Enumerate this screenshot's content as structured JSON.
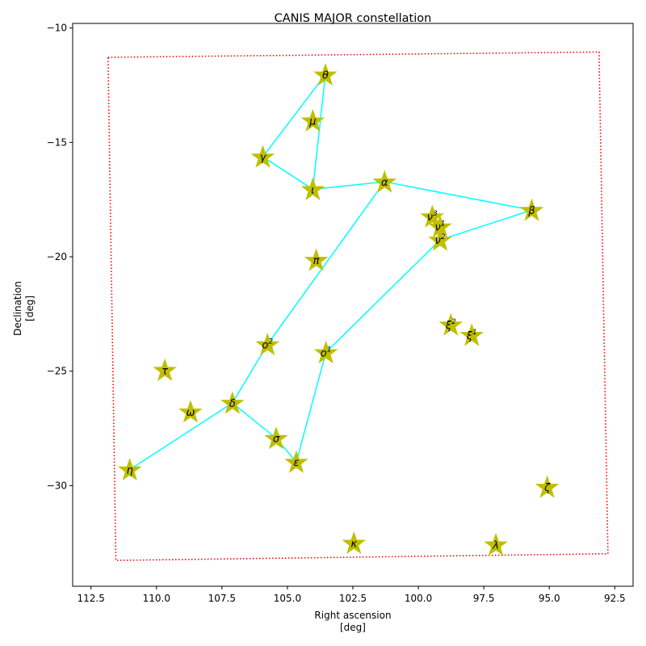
{
  "chart_data": {
    "type": "scatter",
    "title": "CANIS MAJOR constellation",
    "xlabel": [
      "Right ascension",
      "[deg]"
    ],
    "ylabel": [
      "Declination",
      "[deg]"
    ],
    "xlim": [
      113.2,
      91.8
    ],
    "ylim": [
      -34.4,
      -9.8
    ],
    "x_ticks": [
      112.5,
      110.0,
      107.5,
      105.0,
      102.5,
      100.0,
      97.5,
      95.0,
      92.5
    ],
    "x_tick_labels": [
      "112.5",
      "110.0",
      "107.5",
      "105.0",
      "102.5",
      "100.0",
      "97.5",
      "95.0",
      "92.5"
    ],
    "y_ticks": [
      -10,
      -15,
      -20,
      -25,
      -30
    ],
    "y_tick_labels": [
      "−10",
      "−15",
      "−20",
      "−25",
      "−30"
    ],
    "grid": false,
    "colors": {
      "star": "#bfbf00",
      "line": "#00ffff",
      "boundary": "#ff0000",
      "axes": "#000000"
    },
    "stars": [
      {
        "id": "theta",
        "label": "θ",
        "sup": "",
        "x": 103.55,
        "y": -12.04
      },
      {
        "id": "mu",
        "label": "μ",
        "sup": "",
        "x": 104.03,
        "y": -14.05
      },
      {
        "id": "gamma",
        "label": "γ",
        "sup": "",
        "x": 105.94,
        "y": -15.63
      },
      {
        "id": "iota",
        "label": "ι",
        "sup": "",
        "x": 104.03,
        "y": -17.05
      },
      {
        "id": "alpha",
        "label": "α",
        "sup": "",
        "x": 101.29,
        "y": -16.72
      },
      {
        "id": "beta",
        "label": "β",
        "sup": "",
        "x": 95.67,
        "y": -17.96
      },
      {
        "id": "nu3",
        "label": "ν",
        "sup": "3",
        "x": 99.47,
        "y": -18.24
      },
      {
        "id": "nu1",
        "label": "ν",
        "sup": "1",
        "x": 99.17,
        "y": -18.68
      },
      {
        "id": "nu2",
        "label": "ν",
        "sup": "2",
        "x": 99.17,
        "y": -19.26
      },
      {
        "id": "pi",
        "label": "π",
        "sup": "",
        "x": 103.9,
        "y": -20.14
      },
      {
        "id": "xi2",
        "label": "ξ",
        "sup": "2",
        "x": 98.76,
        "y": -22.97
      },
      {
        "id": "xi1",
        "label": "ξ",
        "sup": "1",
        "x": 97.96,
        "y": -23.42
      },
      {
        "id": "omicron2",
        "label": "ο",
        "sup": "2",
        "x": 105.76,
        "y": -23.83
      },
      {
        "id": "omicron1",
        "label": "ο",
        "sup": "1",
        "x": 103.53,
        "y": -24.18
      },
      {
        "id": "tau",
        "label": "τ",
        "sup": "",
        "x": 109.68,
        "y": -24.95
      },
      {
        "id": "delta",
        "label": "δ",
        "sup": "",
        "x": 107.1,
        "y": -26.39
      },
      {
        "id": "omega",
        "label": "ω",
        "sup": "",
        "x": 108.7,
        "y": -26.77
      },
      {
        "id": "sigma",
        "label": "σ",
        "sup": "",
        "x": 105.43,
        "y": -27.93
      },
      {
        "id": "epsilon",
        "label": "ε",
        "sup": "",
        "x": 104.66,
        "y": -28.97
      },
      {
        "id": "eta",
        "label": "η",
        "sup": "",
        "x": 111.02,
        "y": -29.3
      },
      {
        "id": "zeta",
        "label": "ζ",
        "sup": "",
        "x": 95.08,
        "y": -30.06
      },
      {
        "id": "kappa",
        "label": "κ",
        "sup": "",
        "x": 102.46,
        "y": -32.51
      },
      {
        "id": "lambda",
        "label": "λ",
        "sup": "",
        "x": 97.04,
        "y": -32.58
      }
    ],
    "lines": [
      [
        "theta",
        "gamma"
      ],
      [
        "theta",
        "iota"
      ],
      [
        "gamma",
        "iota"
      ],
      [
        "iota",
        "alpha"
      ],
      [
        "alpha",
        "beta"
      ],
      [
        "alpha",
        "omicron2"
      ],
      [
        "omicron2",
        "delta"
      ],
      [
        "delta",
        "eta"
      ],
      [
        "delta",
        "sigma"
      ],
      [
        "sigma",
        "epsilon"
      ],
      [
        "epsilon",
        "omicron1"
      ],
      [
        "omicron1",
        "nu2"
      ],
      [
        "nu2",
        "beta"
      ]
    ],
    "boundary": [
      [
        111.85,
        -11.28
      ],
      [
        93.1,
        -11.05
      ],
      [
        92.76,
        -32.98
      ],
      [
        111.55,
        -33.27
      ],
      [
        111.85,
        -11.28
      ]
    ]
  }
}
